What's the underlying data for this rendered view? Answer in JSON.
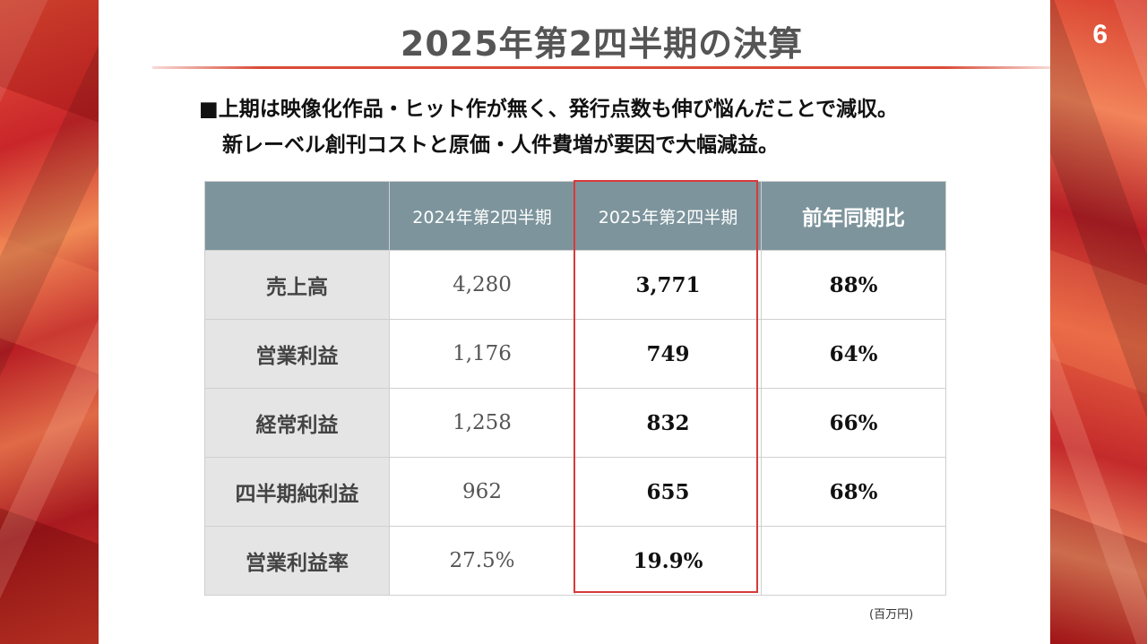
{
  "page_number": "6",
  "title": "2025年第2四半期の決算",
  "bullets": {
    "line1": "■上期は映像化作品・ヒット作が無く、発行点数も伸び悩んだことで減収。",
    "line2": "新レーベル創刊コストと原価・人件費増が要因で大幅減益。"
  },
  "table": {
    "headers": [
      "",
      "2024年第2四半期",
      "2025年第2四半期",
      "前年同期比"
    ],
    "rows": [
      {
        "label": "売上高",
        "prev": "4,280",
        "cur": "3,771",
        "ratio": "88%"
      },
      {
        "label": "営業利益",
        "prev": "1,176",
        "cur": "749",
        "ratio": "64%"
      },
      {
        "label": "経常利益",
        "prev": "1,258",
        "cur": "832",
        "ratio": "66%"
      },
      {
        "label": "四半期純利益",
        "prev": "962",
        "cur": "655",
        "ratio": "68%"
      },
      {
        "label": "営業利益率",
        "prev": "27.5%",
        "cur": "19.9%",
        "ratio": ""
      }
    ]
  },
  "unit_note": "(百万円)",
  "colors": {
    "accent": "#d94a35",
    "table_header": "#7d949c",
    "highlight_border": "#d63a3a"
  }
}
